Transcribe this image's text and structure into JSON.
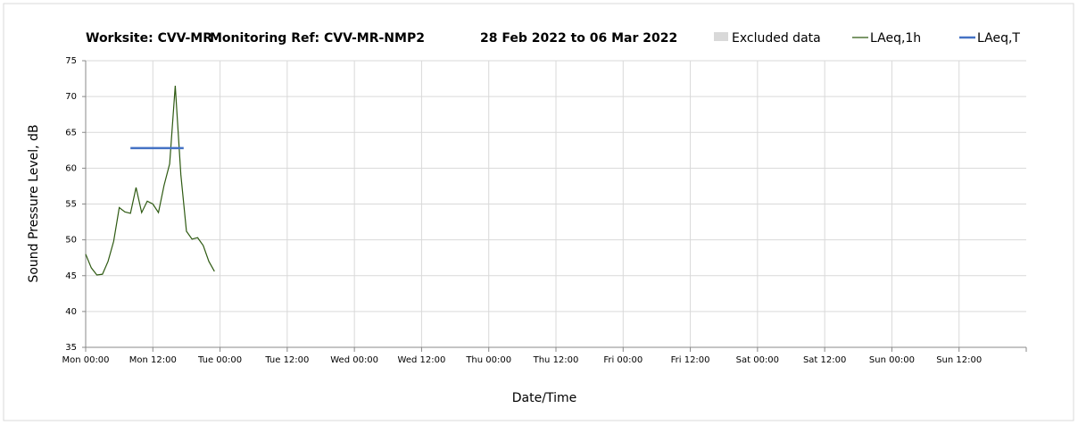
{
  "chart_data": {
    "type": "line",
    "title_parts": [
      "Worksite: CVV-MR",
      "Monitoring Ref: CVV-MR-NMP2",
      "28 Feb 2022 to 06 Mar 2022"
    ],
    "xlabel": "Date/Time",
    "ylabel": "Sound Pressure Level, dB",
    "xlim": [
      0,
      168
    ],
    "ylim": [
      35,
      75
    ],
    "xticks": [
      {
        "value": 0,
        "label": "Mon 00:00"
      },
      {
        "value": 12,
        "label": "Mon 12:00"
      },
      {
        "value": 24,
        "label": "Tue 00:00"
      },
      {
        "value": 36,
        "label": "Tue 12:00"
      },
      {
        "value": 48,
        "label": "Wed 00:00"
      },
      {
        "value": 60,
        "label": "Wed 12:00"
      },
      {
        "value": 72,
        "label": "Thu 00:00"
      },
      {
        "value": 84,
        "label": "Thu 12:00"
      },
      {
        "value": 96,
        "label": "Fri 00:00"
      },
      {
        "value": 108,
        "label": "Fri 12:00"
      },
      {
        "value": 120,
        "label": "Sat 00:00"
      },
      {
        "value": 132,
        "label": "Sat 12:00"
      },
      {
        "value": 144,
        "label": "Sun 00:00"
      },
      {
        "value": 156,
        "label": "Sun 12:00"
      }
    ],
    "yticks": [
      35,
      40,
      45,
      50,
      55,
      60,
      65,
      70,
      75
    ],
    "grid": true,
    "excluded": {
      "name": "Excluded data",
      "color": "#d9d9d9"
    },
    "series": [
      {
        "name": "LAeq,1h",
        "color": "#2e5a12",
        "x": [
          0,
          1,
          2,
          3,
          4,
          5,
          6,
          7,
          8,
          9,
          10,
          11,
          12,
          13,
          14,
          15,
          16,
          17,
          18,
          19,
          20,
          21,
          22,
          23
        ],
        "values": [
          48.0,
          46.1,
          45.1,
          45.2,
          47.0,
          49.8,
          54.5,
          53.9,
          53.7,
          57.3,
          53.8,
          55.4,
          55.0,
          53.8,
          57.6,
          60.6,
          71.5,
          59.1,
          51.2,
          50.1,
          50.3,
          49.2,
          47.0,
          45.6
        ]
      },
      {
        "name": "LAeq,T",
        "color": "#4472c4",
        "x": [
          8,
          17.5
        ],
        "values": [
          62.8,
          62.8
        ]
      }
    ]
  }
}
